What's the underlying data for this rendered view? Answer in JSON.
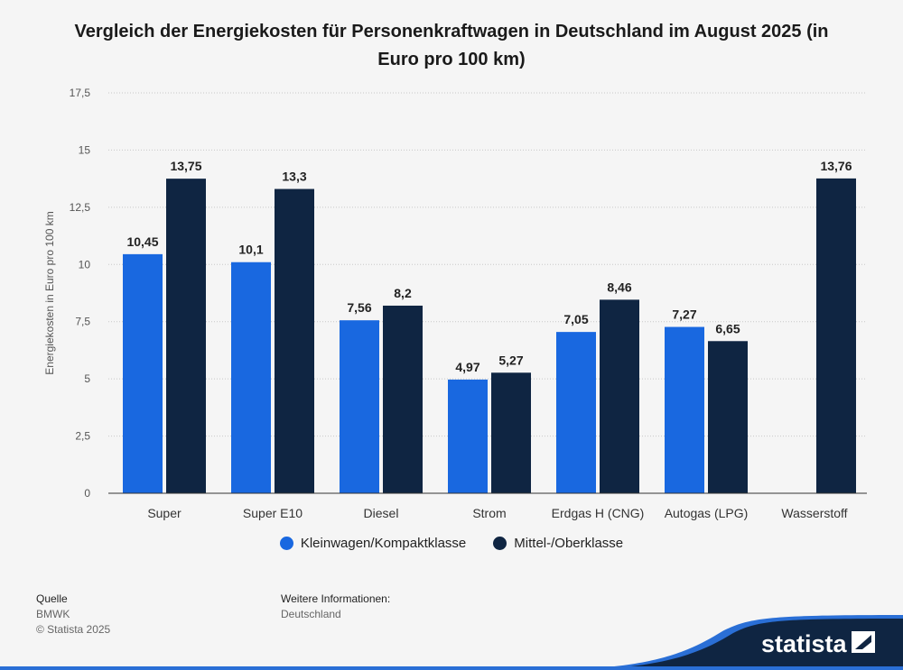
{
  "chart_data": {
    "type": "bar",
    "title": "Vergleich der Energiekosten für Personenkraftwagen in Deutschland im August 2025 (in Euro pro 100 km)",
    "xlabel": "",
    "ylabel": "Energiekosten in Euro pro 100 km",
    "ylim": [
      0,
      17.5
    ],
    "yticks": [
      "0",
      "2,5",
      "5",
      "7,5",
      "10",
      "12,5",
      "15",
      "17,5"
    ],
    "grid": true,
    "legend_placement": "bottom",
    "categories": [
      "Super",
      "Super E10",
      "Diesel",
      "Strom",
      "Erdgas H (CNG)",
      "Autogas (LPG)",
      "Wasserstoff"
    ],
    "series": [
      {
        "name": "Kleinwagen/Kompaktklasse",
        "color": "#1968e0",
        "values": [
          10.45,
          10.1,
          7.56,
          4.97,
          7.05,
          7.27,
          null
        ],
        "labels": [
          "10,45",
          "10,1",
          "7,56",
          "4,97",
          "7,05",
          "7,27",
          null
        ]
      },
      {
        "name": "Mittel-/Oberklasse",
        "color": "#0f2542",
        "values": [
          13.75,
          13.3,
          8.2,
          5.27,
          8.46,
          6.65,
          13.76
        ],
        "labels": [
          "13,75",
          "13,3",
          "8,2",
          "5,27",
          "8,46",
          "6,65",
          "13,76"
        ]
      }
    ]
  },
  "footer": {
    "source_label": "Quelle",
    "source": "BMWK",
    "copyright": "© Statista 2025",
    "info_label": "Weitere Informationen:",
    "info": "Deutschland",
    "logo": "statista"
  }
}
